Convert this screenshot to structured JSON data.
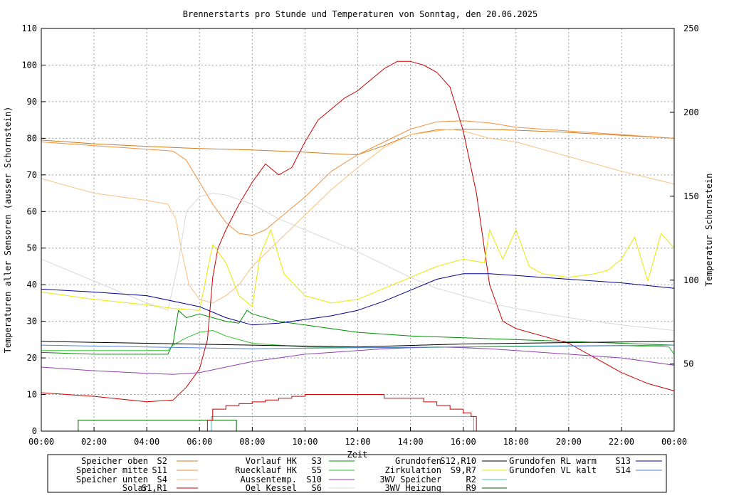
{
  "chart_data": {
    "type": "line",
    "title": "Brennerstarts pro Stunde und Temperaturen von Sonntag, den 20.06.2025",
    "xlabel": "Zeit",
    "ylabel": "Temperaturen aller Sensoren (ausser Schornstein)",
    "y2label": "Temperatur Schornstein",
    "xlim": [
      0,
      24
    ],
    "ylim": [
      0,
      110
    ],
    "y2lim": [
      10,
      250
    ],
    "grid": true,
    "x_ticks": [
      "00:00",
      "02:00",
      "04:00",
      "06:00",
      "08:00",
      "10:00",
      "12:00",
      "14:00",
      "16:00",
      "18:00",
      "20:00",
      "22:00",
      "00:00"
    ],
    "y_ticks": [
      "0",
      "10",
      "20",
      "30",
      "40",
      "50",
      "60",
      "70",
      "80",
      "90",
      "100",
      "110"
    ],
    "y2_ticks": [
      "50",
      "100",
      "150",
      "200",
      "250"
    ],
    "colors": {
      "y2label": "#e040e0"
    },
    "legend": [
      {
        "name": "Speicher oben",
        "sensor": "S2",
        "color": "#d47c1a"
      },
      {
        "name": "Speicher mitte",
        "sensor": "S11",
        "color": "#f09040"
      },
      {
        "name": "Speicher unten",
        "sensor": "S4",
        "color": "#f8c080"
      },
      {
        "name": "Solar",
        "sensor": "S1,R1",
        "color": "#cc0000"
      },
      {
        "name": "Vorlauf HK",
        "sensor": "S3",
        "color": "#009000"
      },
      {
        "name": "Ruecklauf HK",
        "sensor": "S5",
        "color": "#30c030"
      },
      {
        "name": "Aussentemp.",
        "sensor": "S10",
        "color": "#9040b0"
      },
      {
        "name": "Oel Kessel",
        "sensor": "S6",
        "color": "#d8d8d8"
      },
      {
        "name": "Grundofen",
        "sensor": "S12,R10",
        "color": "#000000"
      },
      {
        "name": "Zirkulation",
        "sensor": "S9,R7",
        "color": "#e8e800"
      },
      {
        "name": "3WV Speicher",
        "sensor": "R2",
        "color": "#40c0c0"
      },
      {
        "name": "3WV Heizung",
        "sensor": "R9",
        "color": "#006000"
      },
      {
        "name": "Grundofen RL warm",
        "sensor": "S13",
        "color": "#000090"
      },
      {
        "name": "Grundofen VL kalt",
        "sensor": "S14",
        "color": "#5080e0"
      }
    ],
    "series": [
      {
        "key": "S2",
        "color": "#d47c1a",
        "axis": "y1",
        "x": [
          0,
          2,
          4,
          6,
          8,
          10,
          11,
          12,
          13,
          14,
          15,
          16,
          17,
          18,
          20,
          22,
          24
        ],
        "y": [
          79.5,
          78.5,
          77.8,
          77.2,
          76.8,
          76.2,
          75.8,
          75.5,
          78,
          81,
          82.3,
          82.5,
          82.4,
          82.2,
          81.6,
          80.8,
          80
        ]
      },
      {
        "key": "S11",
        "color": "#f09040",
        "axis": "y1",
        "x": [
          0,
          1,
          2,
          3,
          4,
          5,
          5.5,
          6,
          6.5,
          7,
          7.5,
          8,
          8.5,
          9,
          10,
          11,
          12,
          13,
          14,
          15,
          16,
          17,
          18,
          20,
          22,
          24
        ],
        "y": [
          79,
          78.5,
          78,
          77.5,
          77,
          76.5,
          74,
          68,
          62,
          57,
          54,
          53.5,
          55,
          58,
          64,
          71,
          75.5,
          79,
          82.5,
          84.5,
          84.8,
          84.2,
          83,
          82,
          81,
          80
        ]
      },
      {
        "key": "S4",
        "color": "#f8c080",
        "axis": "y1",
        "x": [
          0,
          1,
          2,
          3,
          4,
          4.8,
          5.1,
          5.3,
          5.6,
          6,
          6.5,
          7,
          7.5,
          8,
          9,
          10,
          11,
          12,
          13,
          14,
          15,
          15.5,
          16,
          17,
          18,
          20,
          22,
          24
        ],
        "y": [
          69,
          67,
          65,
          64,
          63,
          62,
          58,
          50,
          40,
          36,
          35,
          37,
          40,
          45,
          52,
          59,
          66,
          72,
          77.5,
          81,
          82,
          82.5,
          82,
          80,
          79,
          75,
          71,
          67.5
        ]
      },
      {
        "key": "S1",
        "color": "#cc0000",
        "axis": "y1",
        "x": [
          0,
          2,
          4,
          5,
          5.5,
          6,
          6.3,
          6.5,
          6.7,
          7,
          7.5,
          8,
          8.5,
          9,
          9.5,
          10,
          10.5,
          11,
          11.5,
          12,
          12.5,
          13,
          13.5,
          14,
          14.5,
          15,
          15.5,
          16,
          16.5,
          17,
          17.5,
          18,
          19,
          20,
          21,
          22,
          23,
          24
        ],
        "y": [
          10.5,
          9.5,
          8,
          8.5,
          12,
          17,
          25,
          42,
          50,
          55,
          62,
          68,
          73,
          70,
          72,
          79,
          85,
          88,
          91,
          93,
          96,
          99,
          101,
          101,
          100,
          98,
          94,
          82,
          65,
          40,
          30,
          28,
          26,
          24,
          20,
          16,
          13,
          11
        ]
      },
      {
        "key": "S3",
        "color": "#009000",
        "axis": "y1",
        "x": [
          0,
          2,
          4,
          4.8,
          5,
          5.2,
          5.5,
          6,
          6.5,
          7,
          7.5,
          7.8,
          8,
          9,
          10,
          12,
          14,
          16,
          18,
          20,
          22,
          24
        ],
        "y": [
          21.5,
          21,
          21,
          21,
          24,
          33,
          31,
          32,
          31,
          30,
          29.5,
          33,
          32,
          30,
          29,
          27,
          26,
          25.5,
          25,
          24.5,
          24,
          23.5
        ]
      },
      {
        "key": "S5",
        "color": "#30c030",
        "axis": "y1",
        "x": [
          0,
          2,
          4,
          4.8,
          5,
          5.5,
          6,
          6.5,
          7,
          7.5,
          8,
          9,
          10,
          12,
          14,
          16,
          18,
          20,
          22,
          23.8,
          24
        ],
        "y": [
          22,
          22,
          22,
          22,
          23.5,
          25.5,
          27,
          27.5,
          26,
          25,
          24,
          23.5,
          23,
          22.8,
          22.8,
          23,
          23.2,
          23.3,
          23.4,
          23,
          21
        ]
      },
      {
        "key": "S10",
        "color": "#9040b0",
        "axis": "y1",
        "x": [
          0,
          2,
          4,
          5,
          6,
          7,
          8,
          9,
          10,
          11,
          12,
          13,
          14,
          15,
          16,
          17,
          18,
          19,
          20,
          21,
          22,
          23,
          24
        ],
        "y": [
          17.5,
          16.5,
          15.8,
          15.5,
          16,
          17.5,
          19,
          20,
          21,
          21.5,
          22,
          22.5,
          22.8,
          23,
          22.8,
          22.5,
          22,
          21.5,
          21,
          20.5,
          20,
          19,
          18
        ]
      },
      {
        "key": "S6",
        "color": "#d8d8d8",
        "axis": "y1",
        "x": [
          0,
          1,
          2,
          3,
          4,
          4.8,
          5.2,
          5.5,
          6,
          6.5,
          7,
          8,
          9,
          10,
          11,
          12,
          13,
          14,
          15,
          16,
          17,
          18,
          20,
          22,
          24
        ],
        "y": [
          47,
          44,
          41,
          38,
          35,
          33,
          46,
          60,
          64,
          65,
          64.5,
          62,
          58,
          55,
          52,
          49,
          45.5,
          42,
          39,
          37,
          35,
          33.5,
          31,
          29,
          27.5
        ]
      },
      {
        "key": "S12",
        "color": "#000000",
        "axis": "y1",
        "x": [
          0,
          4,
          8,
          12,
          16,
          20,
          24
        ],
        "y": [
          24.5,
          24,
          23.5,
          23,
          23.8,
          24.2,
          24.5
        ]
      },
      {
        "key": "S9",
        "color": "#e8e800",
        "axis": "y1",
        "x": [
          0,
          2,
          4,
          5,
          6,
          6.5,
          7,
          7.5,
          8,
          8.3,
          8.7,
          9.2,
          10,
          11,
          12,
          13,
          14,
          15,
          16,
          16.8,
          17,
          17.5,
          18,
          18.5,
          19,
          20,
          21,
          21.5,
          22,
          22.5,
          23,
          23.5,
          24
        ],
        "y": [
          38,
          36,
          34.5,
          33.5,
          33,
          51,
          46,
          37,
          34,
          48,
          55,
          43,
          37,
          35,
          36,
          39,
          42,
          45,
          47,
          46,
          55,
          47,
          55,
          45,
          43,
          42,
          43,
          44,
          47,
          53,
          41,
          54,
          50
        ]
      },
      {
        "key": "S13",
        "color": "#000090",
        "axis": "y1",
        "x": [
          0,
          2,
          4,
          6,
          7,
          8,
          9,
          10,
          11,
          12,
          13,
          14,
          15,
          16,
          17,
          18,
          20,
          22,
          24
        ],
        "y": [
          38.8,
          38,
          37,
          34,
          31,
          29,
          29.5,
          30.5,
          31.5,
          33,
          35.5,
          38.5,
          41.5,
          43,
          43,
          42.5,
          41.5,
          40.5,
          39
        ]
      },
      {
        "key": "S14",
        "color": "#5080e0",
        "axis": "y1",
        "x": [
          0,
          4,
          8,
          12,
          16,
          20,
          24
        ],
        "y": [
          23.5,
          23,
          22.5,
          22.8,
          23,
          23.2,
          23.5
        ]
      }
    ],
    "burner_starts": {
      "color": "#cc0000",
      "x": [
        6.3,
        6.5,
        7,
        7.5,
        8,
        8.5,
        9,
        9.5,
        10,
        10.5,
        11,
        11.5,
        12,
        12.5,
        13,
        13.5,
        14,
        14.5,
        15,
        15.5,
        16,
        16.3,
        16.5
      ],
      "y": [
        3,
        6,
        7,
        7.5,
        8,
        8.5,
        9,
        9.5,
        10,
        10,
        10,
        10,
        10,
        10,
        9,
        9,
        9,
        8,
        7,
        6,
        5,
        4,
        0
      ]
    },
    "relays": [
      {
        "key": "R2",
        "color": "#40c0c0",
        "level": 4,
        "x_start": 6.45,
        "x_end": 16.4
      },
      {
        "key": "R9",
        "color": "#006000",
        "level": 3,
        "x_start": 1.4,
        "x_end": 7.4
      }
    ]
  }
}
